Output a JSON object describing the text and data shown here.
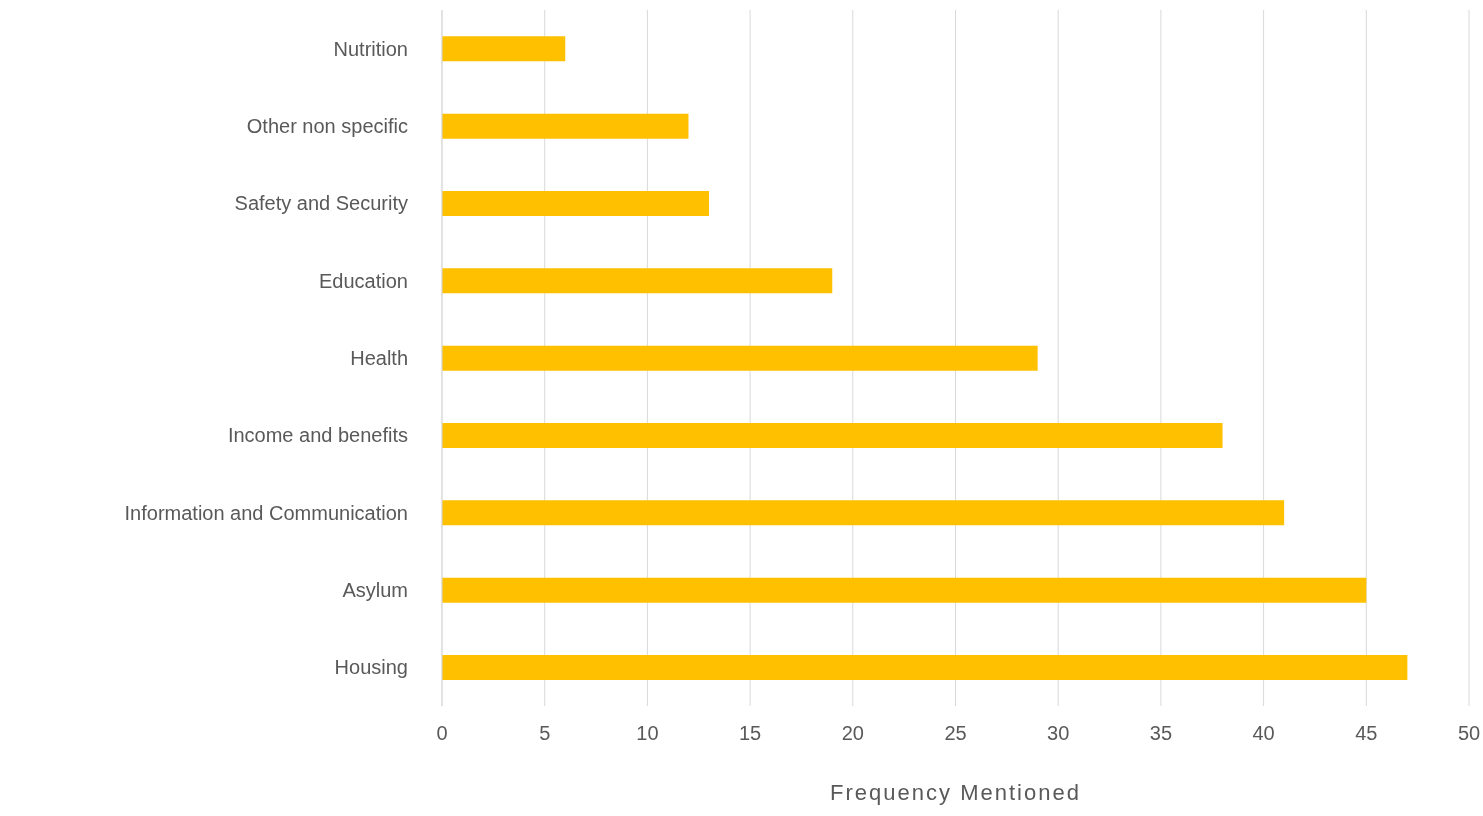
{
  "chart_data": {
    "type": "bar",
    "orientation": "horizontal",
    "xlabel": "Frequency Mentioned",
    "categories": [
      "Nutrition",
      "Other non specific",
      "Safety and Security",
      "Education",
      "Health",
      "Income and benefits",
      "Information and Communication",
      "Asylum",
      "Housing"
    ],
    "values": [
      6,
      12,
      13,
      19,
      29,
      38,
      41,
      45,
      47
    ],
    "color": "#ffc000",
    "xlim": [
      0,
      50
    ],
    "xticks": [
      0,
      5,
      10,
      15,
      20,
      25,
      30,
      35,
      40,
      45,
      50
    ],
    "grid": "x",
    "legend": false
  }
}
